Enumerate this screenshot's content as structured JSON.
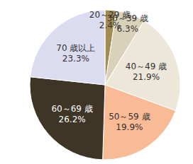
{
  "chart_data": {
    "type": "pie",
    "categories": [
      "20～29 歳",
      "30～39 歳",
      "40～49 歳",
      "50～59 歳",
      "60～69 歳",
      "70 歳以上"
    ],
    "values": [
      2.4,
      6.3,
      21.9,
      19.9,
      26.2,
      23.3
    ],
    "value_labels": [
      "2.4%",
      "6.3%",
      "21.9%",
      "19.9%",
      "26.2%",
      "23.3%"
    ],
    "colors": [
      "#a38c52",
      "#d9d1ba",
      "#ede7da",
      "#f9ba96",
      "#3e3526",
      "#dcdcf0"
    ],
    "data_labels": true
  }
}
